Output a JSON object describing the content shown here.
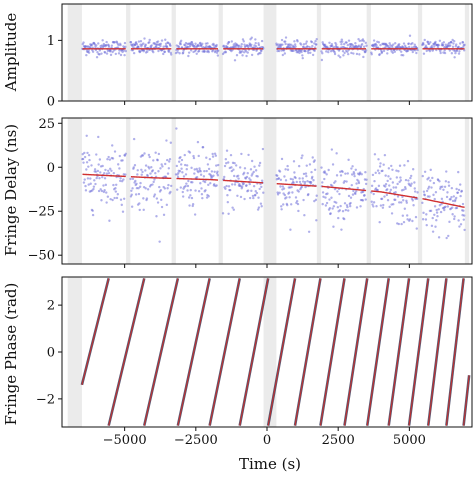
{
  "chart_data": [
    {
      "type": "scatter",
      "ylabel": "Amplitude",
      "ylim": [
        0,
        1.6
      ],
      "yticks": [
        0,
        1
      ],
      "xlim": [
        -7200,
        7200
      ],
      "show_xticks": false,
      "gaps": [
        [
          -7000,
          -6500
        ],
        [
          -4950,
          -4800
        ],
        [
          -3350,
          -3200
        ],
        [
          -1700,
          -1550
        ],
        [
          -120,
          330
        ],
        [
          1750,
          1900
        ],
        [
          3500,
          3650
        ],
        [
          5300,
          5450
        ],
        [
          6950,
          7100
        ]
      ],
      "fit": {
        "type": "flat",
        "value": 0.86
      },
      "scatter_center": 0.88,
      "scatter_spread": 0.06,
      "fit_color": "#d03030",
      "point_color": "#7070d8"
    },
    {
      "type": "scatter",
      "ylabel": "Fringe Delay (ns)",
      "ylim": [
        -55,
        28
      ],
      "yticks": [
        -50,
        -25,
        0,
        25
      ],
      "xlim": [
        -7200,
        7200
      ],
      "show_xticks": false,
      "gaps": [
        [
          -7000,
          -6500
        ],
        [
          -4950,
          -4800
        ],
        [
          -3350,
          -3200
        ],
        [
          -1700,
          -1550
        ],
        [
          -120,
          330
        ],
        [
          1750,
          1900
        ],
        [
          3500,
          3650
        ],
        [
          5300,
          5450
        ],
        [
          6950,
          7100
        ]
      ],
      "fit": {
        "type": "poly",
        "points": [
          [
            -6500,
            -4
          ],
          [
            -4000,
            -6
          ],
          [
            -2000,
            -7
          ],
          [
            0,
            -9
          ],
          [
            2000,
            -11
          ],
          [
            4000,
            -14
          ],
          [
            5500,
            -18
          ],
          [
            7000,
            -23
          ]
        ]
      },
      "scatter_spread": 9,
      "fit_color": "#d03030",
      "point_color": "#7070d8"
    },
    {
      "type": "line",
      "ylabel": "Fringe Phase (rad)",
      "xlabel": "Time (s)",
      "ylim": [
        -3.2,
        3.2
      ],
      "yticks": [
        -2,
        0,
        2
      ],
      "xlim": [
        -7200,
        7200
      ],
      "xticks": [
        -5000,
        -2500,
        0,
        2500,
        5000
      ],
      "xtick_labels": [
        "−5000",
        "−2500",
        "0",
        "2500",
        "5000"
      ],
      "gaps": [
        [
          -7000,
          -6500
        ],
        [
          -120,
          330
        ]
      ],
      "wrap_segments_start": -6500,
      "wrap_period_start_s": 1300,
      "wrap_period_end_s": 560,
      "fit_color": "#c03030",
      "point_color": "#303050"
    }
  ],
  "labels": {
    "panel1_ylabel": "Amplitude",
    "panel2_ylabel": "Fringe Delay (ns)",
    "panel3_ylabel": "Fringe Phase (rad)",
    "xlabel": "Time (s)"
  }
}
